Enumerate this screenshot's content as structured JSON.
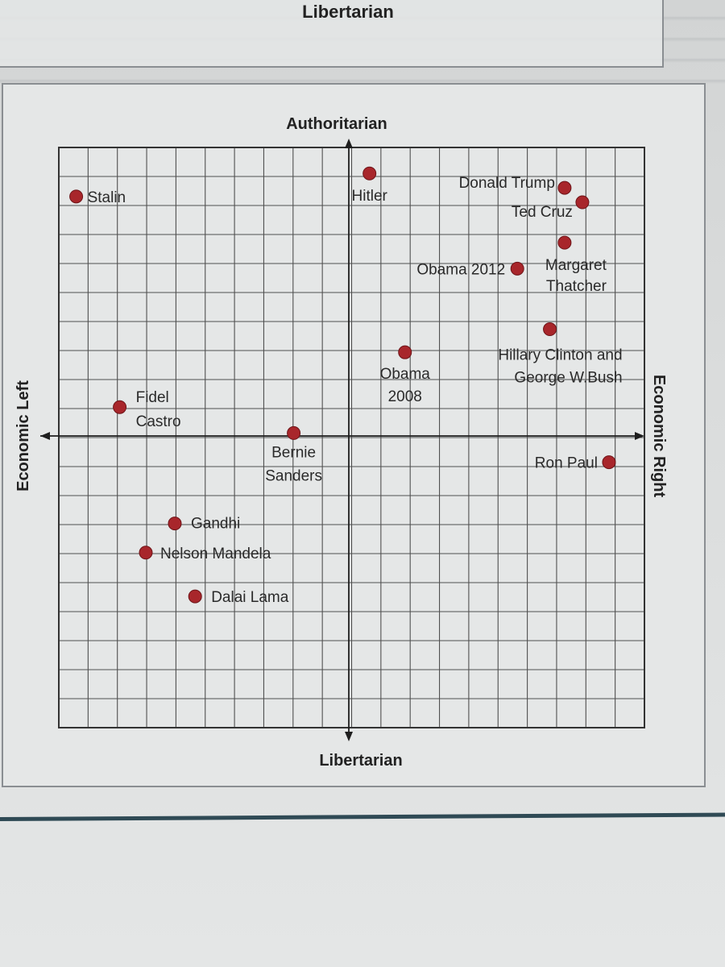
{
  "previous_figure": {
    "title": "Libertarian"
  },
  "chart_data": {
    "type": "scatter",
    "title": "",
    "axes": {
      "top": "Authoritarian",
      "bottom": "Libertarian",
      "left": "Economic Left",
      "right": "Economic Right"
    },
    "xlim": [
      -10,
      10
    ],
    "ylim": [
      -10,
      10
    ],
    "grid": true,
    "points": [
      {
        "label": "Stalin",
        "lines": [
          "Stalin"
        ],
        "x": -9.4,
        "y": 8.3
      },
      {
        "label": "Hitler",
        "lines": [
          "Hitler"
        ],
        "x": 0.7,
        "y": 9.1
      },
      {
        "label": "Donald Trump",
        "lines": [
          "Donald Trump"
        ],
        "x": 7.3,
        "y": 8.6
      },
      {
        "label": "Ted Cruz",
        "lines": [
          "Ted Cruz"
        ],
        "x": 7.9,
        "y": 8.1
      },
      {
        "label": "Margaret Thatcher",
        "lines": [
          "Margaret",
          "Thatcher"
        ],
        "x": 7.3,
        "y": 6.7
      },
      {
        "label": "Obama 2012",
        "lines": [
          "Obama 2012"
        ],
        "x": 5.7,
        "y": 5.8
      },
      {
        "label": "Hillary Clinton and George W.Bush",
        "lines": [
          "Hillary Clinton and",
          "George W.Bush"
        ],
        "x": 6.8,
        "y": 3.7
      },
      {
        "label": "Obama 2008",
        "lines": [
          "Obama",
          "2008"
        ],
        "x": 1.9,
        "y": 2.9
      },
      {
        "label": "Fidel Castro",
        "lines": [
          "Fidel",
          "Castro"
        ],
        "x": -7.9,
        "y": 1.0
      },
      {
        "label": "Bernie Sanders",
        "lines": [
          "Bernie",
          "Sanders"
        ],
        "x": -1.9,
        "y": 0.1
      },
      {
        "label": "Ron Paul",
        "lines": [
          "Ron Paul"
        ],
        "x": 8.8,
        "y": -0.9
      },
      {
        "label": "Gandhi",
        "lines": [
          "Gandhi"
        ],
        "x": -6.0,
        "y": -3.0
      },
      {
        "label": "Nelson Mandela",
        "lines": [
          "Nelson Mandela"
        ],
        "x": -7.0,
        "y": -4.0
      },
      {
        "label": "Dalai Lama",
        "lines": [
          "Dalai Lama"
        ],
        "x": -5.3,
        "y": -5.5
      }
    ],
    "colors": {
      "point": "#a8262b",
      "grid": "#505050",
      "axis": "#1e1e1e"
    }
  }
}
